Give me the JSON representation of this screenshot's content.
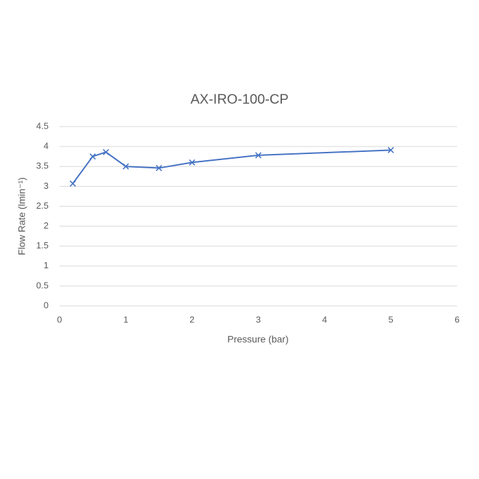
{
  "chart_data": {
    "type": "line",
    "title": "AX-IRO-100-CP",
    "xlabel": "Pressure (bar)",
    "ylabel": "Flow Rate (lmin⁻¹)",
    "x": [
      0.2,
      0.5,
      0.7,
      1,
      1.5,
      2,
      3,
      5
    ],
    "values": [
      3.07,
      3.75,
      3.86,
      3.5,
      3.46,
      3.6,
      3.78,
      3.91
    ],
    "color": "#4472c4",
    "xlim": [
      0,
      6
    ],
    "xticks": [
      0,
      1,
      2,
      3,
      4,
      5,
      6
    ],
    "ylim": [
      0,
      4.5
    ],
    "yticks": [
      0,
      0.5,
      1,
      1.5,
      2,
      2.5,
      3,
      3.5,
      4,
      4.5
    ],
    "grid": true
  }
}
